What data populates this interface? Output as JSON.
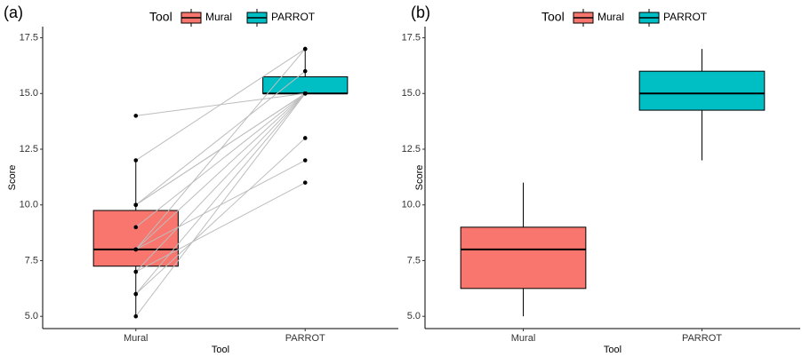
{
  "chart_data": [
    {
      "type": "boxplot",
      "title": "(a)",
      "legend_title": "Tool",
      "x_label": "Tool",
      "y_label": "Score",
      "categories": [
        "Mural",
        "PARROT"
      ],
      "boxes": [
        {
          "name": "Mural",
          "color": "#F8766D",
          "whisker_low": 5,
          "q1": 7.25,
          "median": 8,
          "q3": 9.75,
          "whisker_high": 12
        },
        {
          "name": "PARROT",
          "color": "#00BFC4",
          "whisker_low": 15,
          "q1": 15,
          "median": 15,
          "q3": 15.75,
          "whisker_high": 17
        }
      ],
      "pairs": [
        [
          14,
          15
        ],
        [
          12,
          17
        ],
        [
          10,
          16
        ],
        [
          10,
          15
        ],
        [
          9,
          15
        ],
        [
          8,
          12
        ],
        [
          8,
          15
        ],
        [
          8,
          17
        ],
        [
          7,
          15
        ],
        [
          7,
          11
        ],
        [
          6,
          15
        ],
        [
          6,
          13
        ],
        [
          5,
          15
        ],
        [
          10,
          15
        ]
      ],
      "ylim": [
        4.45,
        18.0
      ],
      "yticks": [
        {
          "value": 5,
          "label": "5.0"
        },
        7.5,
        {
          "value": 10,
          "label": "10.0"
        },
        12.5,
        {
          "value": 15,
          "label": "15.0"
        },
        17.5
      ]
    },
    {
      "type": "boxplot",
      "title": "(b)",
      "legend_title": "Tool",
      "x_label": "Tool",
      "y_label": "Score",
      "categories": [
        "Mural",
        "PARROT"
      ],
      "boxes": [
        {
          "name": "Mural",
          "color": "#F8766D",
          "whisker_low": 5,
          "q1": 6.25,
          "median": 8,
          "q3": 9,
          "whisker_high": 11
        },
        {
          "name": "PARROT",
          "color": "#00BFC4",
          "whisker_low": 12,
          "q1": 14.25,
          "median": 15,
          "q3": 16,
          "whisker_high": 17
        }
      ],
      "ylim": [
        4.45,
        18.0
      ],
      "yticks": [
        {
          "value": 5,
          "label": "5.0"
        },
        7.5,
        {
          "value": 10,
          "label": "10.0"
        },
        12.5,
        {
          "value": 15,
          "label": "15.0"
        },
        17.5
      ]
    }
  ]
}
